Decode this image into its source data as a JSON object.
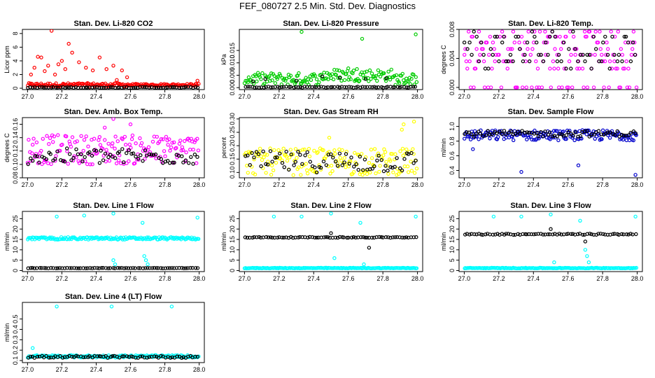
{
  "figure": {
    "title": "FEF_080727  2.5 Min. Std. Dev. Diagnostics"
  },
  "chart_data": [
    {
      "type": "scatter",
      "title": "Stan. Dev. Li-820 CO2",
      "xlabel": "",
      "ylabel": "Licor ppm",
      "xlim": [
        26.97,
        28.03
      ],
      "ylim": [
        -0.2,
        8.6
      ],
      "xticks": [
        "27.0",
        "27.2",
        "27.4",
        "27.6",
        "27.8",
        "28.0"
      ],
      "yticks": [
        "0",
        "2",
        "4",
        "6",
        "8"
      ],
      "series": [
        {
          "color": "#ff0000",
          "base": 0.5,
          "spread": 0.25,
          "x_end": 28.0,
          "points": [
            [
              27.02,
              2.0
            ],
            [
              27.04,
              3.0
            ],
            [
              27.06,
              4.6
            ],
            [
              27.08,
              4.5
            ],
            [
              27.1,
              2.5
            ],
            [
              27.12,
              3.3
            ],
            [
              27.14,
              8.4
            ],
            [
              27.16,
              2.0
            ],
            [
              27.18,
              3.5
            ],
            [
              27.2,
              4.0
            ],
            [
              27.22,
              2.8
            ],
            [
              27.24,
              6.5
            ],
            [
              27.26,
              5.2
            ],
            [
              27.3,
              3.8
            ],
            [
              27.34,
              3.0
            ],
            [
              27.38,
              2.6
            ],
            [
              27.42,
              4.5
            ],
            [
              27.46,
              2.8
            ],
            [
              27.5,
              3.3
            ],
            [
              27.52,
              1.2
            ],
            [
              27.55,
              2.6
            ],
            [
              27.58,
              1.6
            ],
            [
              27.99,
              1.1
            ]
          ]
        },
        {
          "color": "#000000",
          "base": 0.12,
          "spread": 0.06,
          "x_end": 28.0,
          "points": []
        }
      ]
    },
    {
      "type": "scatter",
      "title": "Stan. Dev. Li-820 Pressure",
      "xlabel": "",
      "ylabel": "kPa",
      "xlim": [
        26.97,
        28.03
      ],
      "ylim": [
        -0.0008,
        0.0235
      ],
      "xticks": [
        "27.0",
        "27.2",
        "27.4",
        "27.6",
        "27.8",
        "28.0"
      ],
      "yticks": [
        "0.000",
        "0.005",
        "0.010",
        "0.015"
      ],
      "ytick_values": [
        0,
        0.005,
        0.01,
        0.015
      ],
      "series": [
        {
          "color": "#00cc00",
          "base": 0.0035,
          "spread": 0.0025,
          "x_end": 28.0,
          "points": [
            [
              27.33,
              0.0225
            ],
            [
              27.68,
              0.0197
            ],
            [
              27.99,
              0.0215
            ],
            [
              27.6,
              0.0078
            ],
            [
              27.65,
              0.0075
            ]
          ]
        },
        {
          "color": "#000000",
          "base": 0.0002,
          "spread": 0.0002,
          "x_end": 28.0,
          "points": [
            [
              27.05,
              0.0025
            ],
            [
              27.12,
              0.0035
            ],
            [
              27.3,
              0.0028
            ],
            [
              27.45,
              0.0045
            ],
            [
              27.55,
              0.004
            ],
            [
              27.7,
              0.0035
            ],
            [
              27.82,
              0.0038
            ]
          ]
        }
      ]
    },
    {
      "type": "scatter",
      "title": "Stan. Dev. Li-820 Temp.",
      "xlabel": "",
      "ylabel": "degrees C",
      "xlim": [
        26.97,
        28.03
      ],
      "ylim": [
        -0.0003,
        0.008
      ],
      "xticks": [
        "27.0",
        "27.2",
        "27.4",
        "27.6",
        "27.8",
        "28.0"
      ],
      "yticks": [
        "0.000",
        "0.004",
        "0.008"
      ],
      "ytick_values": [
        0,
        0.004,
        0.008
      ],
      "levels": [
        0.0,
        0.0026,
        0.0036,
        0.0045,
        0.0053,
        0.0062,
        0.007,
        0.0077
      ],
      "series": [
        {
          "color": "#ff00ff",
          "base": 0.004,
          "spread": 0.0035,
          "x_end": 28.0,
          "points": []
        },
        {
          "color": "#000000",
          "base": 0.004,
          "spread": 0.002,
          "x_end": 28.0,
          "points": []
        }
      ]
    },
    {
      "type": "scatter",
      "title": "Stan. Dev. Amb. Box Temp.",
      "xlabel": "",
      "ylabel": "degrees C",
      "xlim": [
        26.97,
        28.03
      ],
      "ylim": [
        0.08,
        0.17
      ],
      "xticks": [
        "27.0",
        "27.2",
        "27.4",
        "27.6",
        "27.8",
        "28.0"
      ],
      "yticks": [
        "0.08",
        "0.10",
        "0.12",
        "0.14",
        "0.16"
      ],
      "ytick_values": [
        0.08,
        0.1,
        0.12,
        0.14,
        0.16
      ],
      "series": [
        {
          "color": "#ff00ff",
          "base": 0.122,
          "spread": 0.022,
          "x_end": 28.0,
          "points": [
            [
              27.5,
              0.168
            ],
            [
              27.45,
              0.155
            ],
            [
              27.6,
              0.16
            ]
          ]
        },
        {
          "color": "#000000",
          "base": 0.112,
          "spread": 0.012,
          "x_end": 28.0,
          "points": []
        }
      ]
    },
    {
      "type": "scatter",
      "title": "Stan. Dev. Gas Stream RH",
      "xlabel": "",
      "ylabel": "percent",
      "xlim": [
        26.97,
        28.03
      ],
      "ylim": [
        0.08,
        0.305
      ],
      "xticks": [
        "27.0",
        "27.2",
        "27.4",
        "27.6",
        "27.8",
        "28.0"
      ],
      "yticks": [
        "0.10",
        "0.15",
        "0.20",
        "0.25",
        "0.30"
      ],
      "ytick_values": [
        0.1,
        0.15,
        0.2,
        0.25,
        0.3
      ],
      "series": [
        {
          "color": "#ffff00",
          "base": 0.14,
          "spread": 0.05,
          "x_end": 28.0,
          "points": [
            [
              27.91,
              0.26
            ],
            [
              27.98,
              0.29
            ],
            [
              27.92,
              0.28
            ],
            [
              27.49,
              0.23
            ]
          ]
        },
        {
          "color": "#000000",
          "base": 0.14,
          "spread": 0.04,
          "x_end": 28.0,
          "points": []
        }
      ]
    },
    {
      "type": "scatter",
      "title": "Stan. Dev. Sample Flow",
      "xlabel": "",
      "ylabel": "ml/min",
      "xlim": [
        26.97,
        28.03
      ],
      "ylim": [
        0.3,
        1.12
      ],
      "xticks": [
        "27.0",
        "27.2",
        "27.4",
        "27.6",
        "27.8",
        "28.0"
      ],
      "yticks": [
        "0.4",
        "0.6",
        "0.8",
        "1.0"
      ],
      "ytick_values": [
        0.4,
        0.6,
        0.8,
        1.0
      ],
      "series": [
        {
          "color": "#0000cc",
          "base": 0.88,
          "spread": 0.07,
          "x_end": 28.0,
          "points": [
            [
              27.05,
              0.69
            ],
            [
              27.33,
              0.38
            ],
            [
              27.66,
              0.47
            ],
            [
              27.99,
              0.34
            ]
          ]
        },
        {
          "color": "#000000",
          "base": 0.9,
          "spread": 0.04,
          "x_end": 28.0,
          "points": []
        }
      ]
    },
    {
      "type": "scatter",
      "title": "Stan. Dev. Line 1 Flow",
      "xlabel": "",
      "ylabel": "ml/min",
      "xlim": [
        26.97,
        28.03
      ],
      "ylim": [
        -0.5,
        28.5
      ],
      "xticks": [
        "27.0",
        "27.2",
        "27.4",
        "27.6",
        "27.8",
        "28.0"
      ],
      "yticks": [
        "0",
        "5",
        "10",
        "15",
        "20",
        "25"
      ],
      "ytick_values": [
        0,
        5,
        10,
        15,
        20,
        25
      ],
      "series": [
        {
          "color": "#00ffff",
          "base": 15.5,
          "spread": 0.6,
          "x_end": 28.0,
          "points": [
            [
              27.17,
              26
            ],
            [
              27.33,
              26.5
            ],
            [
              27.5,
              27.5
            ],
            [
              27.67,
              23
            ],
            [
              27.99,
              25.5
            ],
            [
              27.5,
              5
            ],
            [
              27.51,
              3
            ],
            [
              27.69,
              5
            ],
            [
              27.7,
              3
            ],
            [
              27.68,
              7
            ]
          ]
        },
        {
          "color": "#000000",
          "base": 1.2,
          "spread": 0.1,
          "x_end": 28.0,
          "points": []
        }
      ]
    },
    {
      "type": "scatter",
      "title": "Stan. Dev. Line 2 Flow",
      "xlabel": "",
      "ylabel": "ml/min",
      "xlim": [
        26.97,
        28.03
      ],
      "ylim": [
        -0.5,
        28.5
      ],
      "xticks": [
        "27.0",
        "27.2",
        "27.4",
        "27.6",
        "27.8",
        "28.0"
      ],
      "yticks": [
        "0",
        "5",
        "10",
        "15",
        "20",
        "25"
      ],
      "ytick_values": [
        0,
        5,
        10,
        15,
        20,
        25
      ],
      "series": [
        {
          "color": "#00ffff",
          "base": 1.2,
          "spread": 0.15,
          "x_end": 28.0,
          "points": [
            [
              27.17,
              26
            ],
            [
              27.33,
              26
            ],
            [
              27.5,
              27.5
            ],
            [
              27.67,
              23
            ],
            [
              27.99,
              26
            ],
            [
              27.52,
              6
            ],
            [
              27.69,
              3
            ]
          ]
        },
        {
          "color": "#000000",
          "base": 16.0,
          "spread": 0.2,
          "x_end": 28.0,
          "points": [
            [
              27.72,
              11
            ],
            [
              27.5,
              18
            ]
          ]
        }
      ]
    },
    {
      "type": "scatter",
      "title": "Stan. Dev. Line 3 Flow",
      "xlabel": "",
      "ylabel": "ml/min",
      "xlim": [
        26.97,
        28.03
      ],
      "ylim": [
        -0.5,
        28.5
      ],
      "xticks": [
        "27.0",
        "27.2",
        "27.4",
        "27.6",
        "27.8",
        "28.0"
      ],
      "yticks": [
        "0",
        "5",
        "10",
        "15",
        "20",
        "25"
      ],
      "ytick_values": [
        0,
        5,
        10,
        15,
        20,
        25
      ],
      "series": [
        {
          "color": "#00ffff",
          "base": 1.2,
          "spread": 0.15,
          "x_end": 28.0,
          "points": [
            [
              27.17,
              26
            ],
            [
              27.33,
              26
            ],
            [
              27.5,
              27
            ],
            [
              27.67,
              24
            ],
            [
              27.99,
              26
            ],
            [
              27.52,
              4
            ],
            [
              27.7,
              10
            ],
            [
              27.71,
              7
            ],
            [
              27.72,
              4
            ]
          ]
        },
        {
          "color": "#000000",
          "base": 17.5,
          "spread": 0.3,
          "x_end": 28.0,
          "points": [
            [
              27.5,
              20
            ],
            [
              27.7,
              14
            ]
          ]
        }
      ]
    },
    {
      "type": "scatter",
      "title": "Stan. Dev. Line 4 (LT) Flow",
      "xlabel": "",
      "ylabel": "ml/min",
      "xlim": [
        26.97,
        28.03
      ],
      "ylim": [
        0.08,
        0.66
      ],
      "xticks": [
        "27.0",
        "27.2",
        "27.4",
        "27.6",
        "27.8",
        "28.0"
      ],
      "yticks": [
        "0.1",
        "0.2",
        "0.3",
        "0.4",
        "0.5"
      ],
      "ytick_values": [
        0.1,
        0.2,
        0.3,
        0.4,
        0.5
      ],
      "series": [
        {
          "color": "#00ffff",
          "base": 0.14,
          "spread": 0.012,
          "x_end": 28.0,
          "points": [
            [
              27.03,
              0.22
            ],
            [
              27.17,
              0.62
            ],
            [
              27.49,
              0.62
            ],
            [
              27.84,
              0.62
            ]
          ]
        },
        {
          "color": "#000000",
          "base": 0.135,
          "spread": 0.01,
          "x_end": 28.0,
          "points": []
        }
      ]
    }
  ]
}
